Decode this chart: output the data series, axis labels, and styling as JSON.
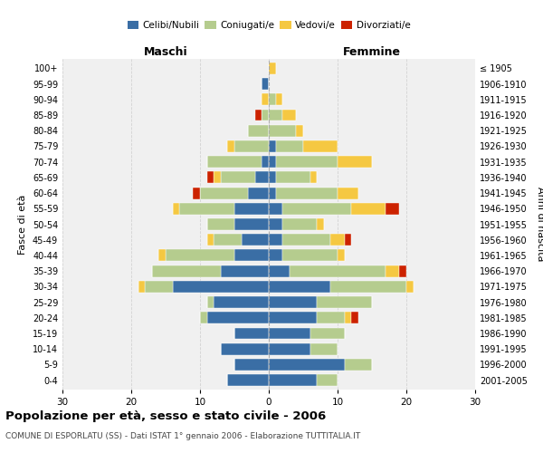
{
  "age_groups": [
    "0-4",
    "5-9",
    "10-14",
    "15-19",
    "20-24",
    "25-29",
    "30-34",
    "35-39",
    "40-44",
    "45-49",
    "50-54",
    "55-59",
    "60-64",
    "65-69",
    "70-74",
    "75-79",
    "80-84",
    "85-89",
    "90-94",
    "95-99",
    "100+"
  ],
  "birth_years": [
    "2001-2005",
    "1996-2000",
    "1991-1995",
    "1986-1990",
    "1981-1985",
    "1976-1980",
    "1971-1975",
    "1966-1970",
    "1961-1965",
    "1956-1960",
    "1951-1955",
    "1946-1950",
    "1941-1945",
    "1936-1940",
    "1931-1935",
    "1926-1930",
    "1921-1925",
    "1916-1920",
    "1911-1915",
    "1906-1910",
    "≤ 1905"
  ],
  "males": {
    "celibi": [
      6,
      5,
      7,
      5,
      9,
      8,
      14,
      7,
      5,
      4,
      5,
      5,
      3,
      2,
      1,
      0,
      0,
      0,
      0,
      1,
      0
    ],
    "coniugati": [
      0,
      0,
      0,
      0,
      1,
      1,
      4,
      10,
      10,
      4,
      4,
      8,
      7,
      5,
      8,
      5,
      3,
      1,
      0,
      0,
      0
    ],
    "vedovi": [
      0,
      0,
      0,
      0,
      0,
      0,
      1,
      0,
      1,
      1,
      0,
      1,
      0,
      1,
      0,
      1,
      0,
      0,
      1,
      0,
      0
    ],
    "divorziati": [
      0,
      0,
      0,
      0,
      0,
      0,
      0,
      0,
      0,
      0,
      0,
      0,
      1,
      1,
      0,
      0,
      0,
      1,
      0,
      0,
      0
    ]
  },
  "females": {
    "nubili": [
      7,
      11,
      6,
      6,
      7,
      7,
      9,
      3,
      2,
      2,
      2,
      2,
      1,
      1,
      1,
      1,
      0,
      0,
      0,
      0,
      0
    ],
    "coniugate": [
      3,
      4,
      4,
      5,
      4,
      8,
      11,
      14,
      8,
      7,
      5,
      10,
      9,
      5,
      9,
      4,
      4,
      2,
      1,
      0,
      0
    ],
    "vedove": [
      0,
      0,
      0,
      0,
      1,
      0,
      1,
      2,
      1,
      2,
      1,
      5,
      3,
      1,
      5,
      5,
      1,
      2,
      1,
      0,
      1
    ],
    "divorziate": [
      0,
      0,
      0,
      0,
      1,
      0,
      0,
      1,
      0,
      1,
      0,
      2,
      0,
      0,
      0,
      0,
      0,
      0,
      0,
      0,
      0
    ]
  },
  "color_celibi": "#3a6ea5",
  "color_coniugati": "#b5cc8e",
  "color_vedovi": "#f5c842",
  "color_divorziati": "#cc2200",
  "xlim": 30,
  "title": "Popolazione per età, sesso e stato civile - 2006",
  "subtitle": "COMUNE DI ESPORLATU (SS) - Dati ISTAT 1° gennaio 2006 - Elaborazione TUTTITALIA.IT",
  "ylabel_left": "Fasce di età",
  "ylabel_right": "Anni di nascita",
  "xlabel_left": "Maschi",
  "xlabel_right": "Femmine",
  "bg_color": "#f0f0f0"
}
